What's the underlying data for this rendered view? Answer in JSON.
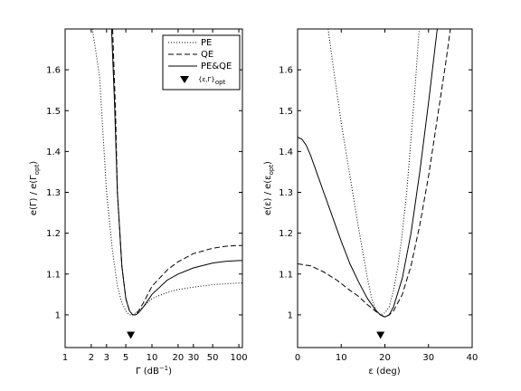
{
  "chart_data": [
    {
      "type": "line",
      "xscale": "log",
      "xlim": [
        1,
        110
      ],
      "ylim": [
        0.92,
        1.7
      ],
      "xticks": [
        1,
        2,
        3,
        5,
        10,
        20,
        30,
        50,
        100
      ],
      "xtick_labels": [
        "1",
        "2",
        "3",
        "5",
        "10",
        "20",
        "30",
        "50",
        "100"
      ],
      "yticks": [
        1.0,
        1.1,
        1.2,
        1.3,
        1.4,
        1.5,
        1.6
      ],
      "ytick_labels": [
        "1",
        "1.1",
        "1.2",
        "1.3",
        "1.4",
        "1.5",
        "1.6"
      ],
      "xlabel": {
        "main": "Γ (dB",
        "sup": "−1",
        "tail": ")"
      },
      "ylabel": {
        "a": "e(Γ) / e(Γ",
        "sub": "opt",
        "b": ")"
      },
      "legend": {
        "position": "top-right",
        "entries": [
          {
            "label": "PE",
            "style": "dotted"
          },
          {
            "label": "QE",
            "style": "dashed"
          },
          {
            "label": "PE&QE",
            "style": "solid"
          },
          {
            "label": "{ε,Γ}",
            "sub": "opt",
            "style": "marker"
          }
        ]
      },
      "marker": {
        "x": 5.7,
        "y": 0.95
      },
      "series": [
        {
          "style": "dotted",
          "x": [
            2.0,
            2.5,
            3.0,
            3.5,
            4.0,
            4.5,
            5.0,
            5.5,
            6.0,
            6.5,
            7.0,
            8.0,
            10,
            15,
            20,
            30,
            50,
            70,
            100,
            110
          ],
          "y": [
            1.72,
            1.58,
            1.3,
            1.16,
            1.07,
            1.03,
            1.01,
            1.0,
            1.0,
            1.005,
            1.01,
            1.02,
            1.04,
            1.055,
            1.062,
            1.068,
            1.074,
            1.076,
            1.078,
            1.078
          ]
        },
        {
          "style": "dashed",
          "x": [
            3.5,
            3.8,
            4.0,
            4.5,
            5.0,
            5.5,
            6.0,
            6.5,
            7.0,
            8.0,
            10,
            15,
            20,
            30,
            50,
            70,
            100,
            110
          ],
          "y": [
            1.72,
            1.5,
            1.3,
            1.12,
            1.04,
            1.01,
            1.0,
            1.0,
            1.01,
            1.03,
            1.07,
            1.11,
            1.13,
            1.15,
            1.163,
            1.168,
            1.17,
            1.17
          ]
        },
        {
          "style": "solid",
          "x": [
            3.4,
            3.7,
            4.0,
            4.5,
            5.0,
            5.5,
            6.0,
            6.5,
            7.0,
            8.0,
            10,
            15,
            20,
            30,
            50,
            70,
            100,
            110
          ],
          "y": [
            1.72,
            1.52,
            1.3,
            1.12,
            1.04,
            1.01,
            1.0,
            1.0,
            1.005,
            1.02,
            1.05,
            1.085,
            1.1,
            1.115,
            1.127,
            1.131,
            1.133,
            1.133
          ]
        }
      ]
    },
    {
      "type": "line",
      "xlim": [
        0,
        40
      ],
      "ylim": [
        0.92,
        1.7
      ],
      "xticks": [
        0,
        10,
        20,
        30,
        40
      ],
      "xtick_labels": [
        "0",
        "10",
        "20",
        "30",
        "40"
      ],
      "yticks": [
        1.0,
        1.1,
        1.2,
        1.3,
        1.4,
        1.5,
        1.6
      ],
      "ytick_labels": [
        "1",
        "1.1",
        "1.2",
        "1.3",
        "1.4",
        "1.5",
        "1.6"
      ],
      "xlabel": {
        "main": "ε (deg)"
      },
      "ylabel": {
        "a": "e(ε) / e(ε",
        "sub": "opt",
        "b": ")"
      },
      "marker": {
        "x": 19,
        "y": 0.95
      },
      "series": [
        {
          "style": "dotted",
          "x": [
            7,
            8,
            10,
            12,
            14,
            15,
            16,
            17,
            18,
            19,
            20,
            21,
            22,
            23,
            24,
            25,
            26,
            27,
            28
          ],
          "y": [
            1.7,
            1.62,
            1.47,
            1.34,
            1.21,
            1.15,
            1.09,
            1.04,
            1.01,
            1.0,
            1.005,
            1.02,
            1.06,
            1.12,
            1.2,
            1.3,
            1.43,
            1.57,
            1.72
          ]
        },
        {
          "style": "dashed",
          "x": [
            0,
            3,
            6,
            9,
            12,
            14,
            16,
            18,
            19,
            20,
            21,
            22,
            24,
            26,
            28,
            30,
            32,
            34,
            35
          ],
          "y": [
            1.125,
            1.12,
            1.105,
            1.085,
            1.06,
            1.045,
            1.025,
            1.008,
            1.0,
            0.995,
            1.0,
            1.01,
            1.05,
            1.12,
            1.22,
            1.34,
            1.48,
            1.62,
            1.7
          ]
        },
        {
          "style": "solid",
          "x": [
            0,
            1,
            2,
            3,
            4,
            6,
            8,
            10,
            12,
            14,
            16,
            18,
            19,
            20,
            21,
            22,
            24,
            26,
            28,
            30,
            32
          ],
          "y": [
            1.435,
            1.43,
            1.415,
            1.39,
            1.36,
            1.3,
            1.24,
            1.18,
            1.125,
            1.08,
            1.04,
            1.01,
            1.0,
            0.995,
            1.0,
            1.02,
            1.09,
            1.2,
            1.35,
            1.52,
            1.7
          ]
        }
      ]
    }
  ]
}
